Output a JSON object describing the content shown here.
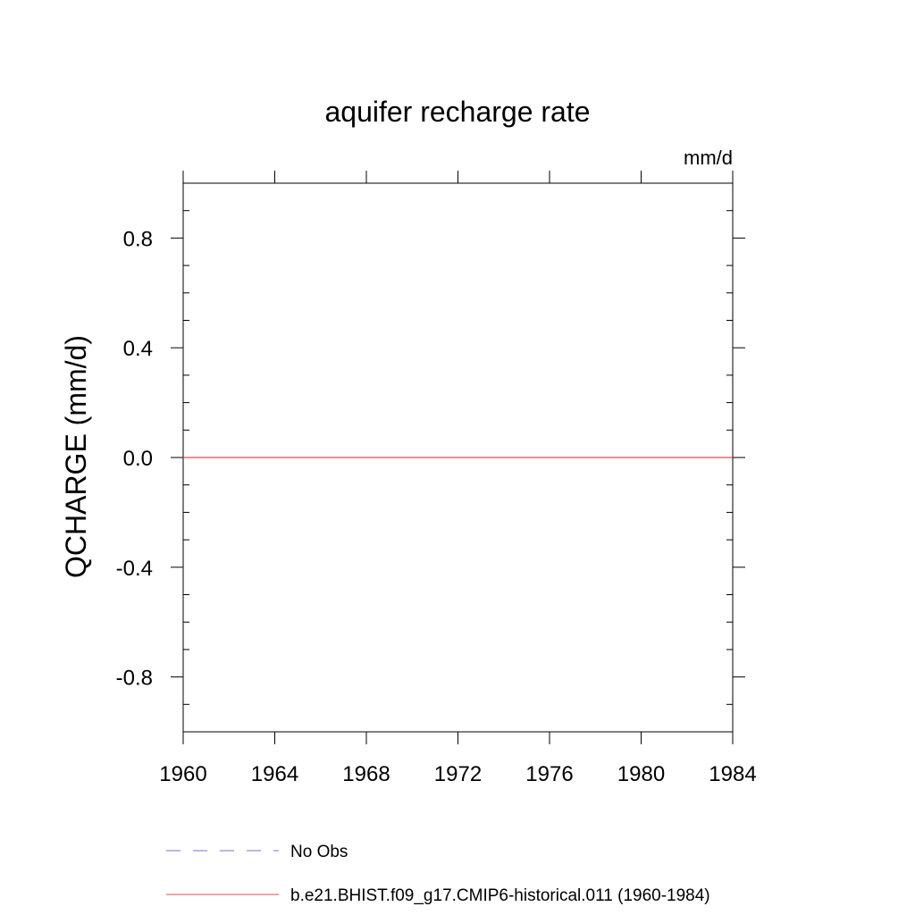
{
  "chart_data": {
    "type": "line",
    "title": "aquifer recharge rate",
    "units": "mm/d",
    "ylabel": "QCHARGE  (mm/d)",
    "xlabel": "",
    "xlim": [
      1960,
      1984
    ],
    "ylim": [
      -1.0,
      1.0
    ],
    "x_ticks": [
      1960,
      1964,
      1968,
      1972,
      1976,
      1980,
      1984
    ],
    "x_tick_labels": [
      "1960",
      "1964",
      "1968",
      "1972",
      "1976",
      "1980",
      "1984"
    ],
    "y_ticks": [
      0.8,
      0.4,
      0.0,
      -0.4,
      -0.8
    ],
    "y_tick_labels": [
      "0.8",
      "0.4",
      "0.0",
      "-0.4",
      "-0.8"
    ],
    "grid": false,
    "legend_placement": "bottom",
    "series": [
      {
        "name": "b.e21.BHIST.f09_g17.CMIP6-historical.011 (1960-1984)",
        "color": "#e8474f",
        "style": "solid",
        "x": [
          1960,
          1984
        ],
        "values": [
          0.0,
          0.0
        ]
      }
    ],
    "legend": [
      {
        "label": "No Obs",
        "color": "#7b6fd0",
        "style": "dashed"
      },
      {
        "label": "b.e21.BHIST.f09_g17.CMIP6-historical.011 (1960-1984)",
        "color": "#e8474f",
        "style": "solid"
      }
    ]
  }
}
